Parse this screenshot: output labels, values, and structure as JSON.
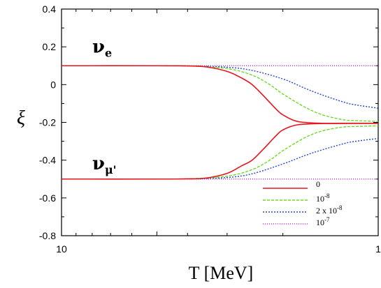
{
  "chart_data": {
    "type": "line",
    "title": "",
    "xlabel": "T [MeV]",
    "ylabel": "ξ",
    "x_scale": "log",
    "x_reversed": true,
    "xlim": [
      10,
      1
    ],
    "ylim": [
      -0.8,
      0.4
    ],
    "grid": false,
    "legend_position": "bottom-right",
    "x_ticks": [
      {
        "value": 10,
        "label": "10"
      },
      {
        "value": 1,
        "label": "1"
      }
    ],
    "y_ticks": [
      {
        "value": 0.4,
        "label": "0.4"
      },
      {
        "value": 0.2,
        "label": "0.2"
      },
      {
        "value": 0,
        "label": "0"
      },
      {
        "value": -0.2,
        "label": "-0.2"
      },
      {
        "value": -0.4,
        "label": "-0.4"
      },
      {
        "value": -0.6,
        "label": "-0.6"
      },
      {
        "value": -0.8,
        "label": "-0.8"
      }
    ],
    "annotations": [
      {
        "id": "nu-e",
        "base": "ν",
        "sub": "e",
        "x": 8.0,
        "y": 0.17
      },
      {
        "id": "nu-mu",
        "base": "ν",
        "sub": "μ'",
        "x": 8.0,
        "y": -0.45
      }
    ],
    "series": [
      {
        "name": "0",
        "color": "#e8141c",
        "dash": "solid",
        "upper": {
          "x": [
            10,
            5,
            4,
            3.5,
            3,
            2.7,
            2.5,
            2.3,
            2.1,
            2.0,
            1.8,
            1.5,
            1.2,
            1
          ],
          "y": [
            0.1,
            0.1,
            0.099,
            0.094,
            0.07,
            0.035,
            0.0,
            -0.06,
            -0.13,
            -0.16,
            -0.195,
            -0.205,
            -0.205,
            -0.205
          ]
        },
        "lower": {
          "x": [
            10,
            5,
            4,
            3.5,
            3,
            2.7,
            2.5,
            2.3,
            2.1,
            2.0,
            1.8,
            1.5,
            1.2,
            1
          ],
          "y": [
            -0.5,
            -0.5,
            -0.499,
            -0.495,
            -0.47,
            -0.43,
            -0.4,
            -0.34,
            -0.27,
            -0.24,
            -0.213,
            -0.206,
            -0.205,
            -0.205
          ]
        }
      },
      {
        "name": "10-8",
        "color": "#66dd22",
        "dash": "4,2",
        "upper": {
          "x": [
            10,
            5,
            4,
            3,
            2.5,
            2.2,
            2.0,
            1.7,
            1.5,
            1.3,
            1.2,
            1
          ],
          "y": [
            0.1,
            0.1,
            0.099,
            0.085,
            0.05,
            0.0,
            -0.05,
            -0.12,
            -0.16,
            -0.185,
            -0.19,
            -0.195
          ]
        },
        "lower": {
          "x": [
            10,
            5,
            4,
            3,
            2.5,
            2.2,
            2.0,
            1.7,
            1.5,
            1.3,
            1.2,
            1
          ],
          "y": [
            -0.5,
            -0.5,
            -0.499,
            -0.485,
            -0.45,
            -0.4,
            -0.35,
            -0.28,
            -0.245,
            -0.225,
            -0.222,
            -0.218
          ]
        }
      },
      {
        "name": "2 x 10-8",
        "color": "#2244dd",
        "dash": "2,2",
        "upper": {
          "x": [
            10,
            5,
            4,
            3,
            2.5,
            2.0,
            1.7,
            1.5,
            1.3,
            1.2,
            1
          ],
          "y": [
            0.1,
            0.1,
            0.099,
            0.092,
            0.075,
            0.03,
            -0.02,
            -0.055,
            -0.09,
            -0.105,
            -0.125
          ]
        },
        "lower": {
          "x": [
            10,
            5,
            4,
            3,
            2.5,
            2.0,
            1.7,
            1.5,
            1.3,
            1.2,
            1
          ],
          "y": [
            -0.5,
            -0.5,
            -0.499,
            -0.492,
            -0.472,
            -0.42,
            -0.375,
            -0.345,
            -0.315,
            -0.302,
            -0.285
          ]
        }
      },
      {
        "name": "10-7",
        "color": "#cc33ee",
        "dash": "1,2",
        "upper": {
          "x": [
            10,
            1
          ],
          "y": [
            0.1,
            0.1
          ]
        },
        "lower": {
          "x": [
            10,
            1
          ],
          "y": [
            -0.5,
            -0.5
          ]
        }
      }
    ],
    "legend": [
      {
        "base": "0",
        "sup": ""
      },
      {
        "base": "10",
        "sup": "-8"
      },
      {
        "base": "2 x 10",
        "sup": "-8"
      },
      {
        "base": "10",
        "sup": "-7"
      }
    ]
  }
}
